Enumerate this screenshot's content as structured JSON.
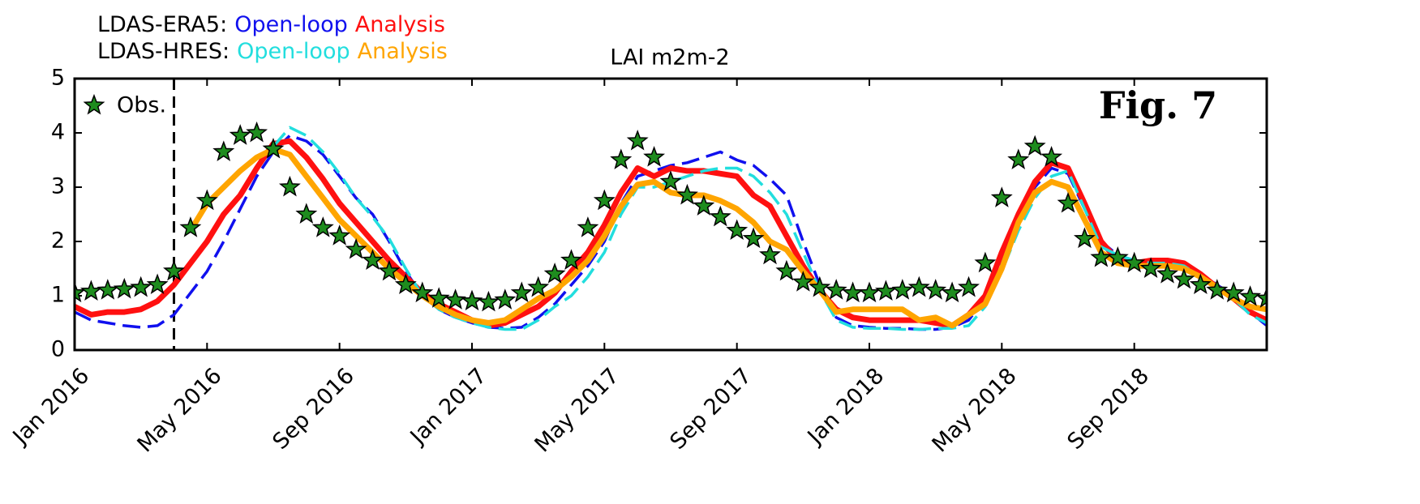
{
  "chart_data": {
    "type": "line",
    "title": "LAI m2m-2",
    "annotation": "Fig. 7",
    "legend_rows": [
      {
        "label": "LDAS-ERA5:"
      },
      {
        "label": "LDAS-HRES:"
      }
    ],
    "legend": "upper left",
    "xlim": [
      2016,
      2019
    ],
    "ylim": [
      0,
      5
    ],
    "yticks": [
      0,
      1,
      2,
      3,
      4,
      5
    ],
    "xticks": [
      {
        "value": 2016,
        "label": "Jan 2016"
      },
      {
        "value": 2016.3333,
        "label": "May 2016"
      },
      {
        "value": 2016.6667,
        "label": "Sep 2016"
      },
      {
        "value": 2017,
        "label": "Jan 2017"
      },
      {
        "value": 2017.3333,
        "label": "May 2017"
      },
      {
        "value": 2017.6667,
        "label": "Sep 2017"
      },
      {
        "value": 2018,
        "label": "Jan 2018"
      },
      {
        "value": 2018.3333,
        "label": "May 2018"
      },
      {
        "value": 2018.6667,
        "label": "Sep 2018"
      }
    ],
    "vline": 2016.25,
    "x": [
      2016,
      2016.0417,
      2016.0833,
      2016.125,
      2016.1667,
      2016.2083,
      2016.25,
      2016.2917,
      2016.3333,
      2016.375,
      2016.4167,
      2016.4583,
      2016.5,
      2016.5417,
      2016.5833,
      2016.625,
      2016.6667,
      2016.7083,
      2016.75,
      2016.7917,
      2016.8333,
      2016.875,
      2016.9167,
      2016.9583,
      2017,
      2017.0417,
      2017.0833,
      2017.125,
      2017.1667,
      2017.2083,
      2017.25,
      2017.2917,
      2017.3333,
      2017.375,
      2017.4167,
      2017.4583,
      2017.5,
      2017.5417,
      2017.5833,
      2017.625,
      2017.6667,
      2017.7083,
      2017.75,
      2017.7917,
      2017.8333,
      2017.875,
      2017.9167,
      2017.9583,
      2018,
      2018.0417,
      2018.0833,
      2018.125,
      2018.1667,
      2018.2083,
      2018.25,
      2018.2917,
      2018.3333,
      2018.375,
      2018.4167,
      2018.4583,
      2018.5,
      2018.5417,
      2018.5833,
      2018.625,
      2018.6667,
      2018.7083,
      2018.75,
      2018.7917,
      2018.8333,
      2018.875,
      2018.9167,
      2018.9583,
      2019
    ],
    "series": [
      {
        "name": "Open-loop",
        "color": "#1010ee",
        "style": "dashed",
        "width": 3.5,
        "values": [
          0.7,
          0.55,
          0.5,
          0.45,
          0.42,
          0.45,
          0.65,
          1.05,
          1.45,
          2.0,
          2.6,
          3.2,
          3.65,
          3.95,
          3.85,
          3.6,
          3.2,
          2.8,
          2.5,
          2.0,
          1.45,
          1.0,
          0.75,
          0.6,
          0.5,
          0.42,
          0.4,
          0.42,
          0.6,
          0.85,
          1.2,
          1.55,
          2.0,
          2.7,
          3.2,
          3.3,
          3.4,
          3.45,
          3.55,
          3.65,
          3.5,
          3.4,
          3.15,
          2.85,
          2.0,
          1.2,
          0.6,
          0.45,
          0.42,
          0.4,
          0.4,
          0.38,
          0.38,
          0.42,
          0.55,
          0.95,
          1.6,
          2.4,
          3.0,
          3.35,
          3.25,
          2.6,
          2.0,
          1.75,
          1.65,
          1.65,
          1.6,
          1.55,
          1.4,
          1.2,
          1.0,
          0.7,
          0.45
        ]
      },
      {
        "name": "Analysis",
        "color": "#ff1010",
        "style": "solid",
        "width": 7,
        "values": [
          0.8,
          0.65,
          0.7,
          0.7,
          0.75,
          0.9,
          1.2,
          1.6,
          2.0,
          2.5,
          2.85,
          3.35,
          3.8,
          3.85,
          3.55,
          3.15,
          2.7,
          2.35,
          2.0,
          1.65,
          1.35,
          1.05,
          0.85,
          0.7,
          0.55,
          0.45,
          0.5,
          0.65,
          0.8,
          1.05,
          1.45,
          1.8,
          2.3,
          2.9,
          3.35,
          3.2,
          3.35,
          3.3,
          3.3,
          3.25,
          3.2,
          2.85,
          2.65,
          2.1,
          1.55,
          1.1,
          0.75,
          0.6,
          0.55,
          0.55,
          0.55,
          0.55,
          0.5,
          0.45,
          0.65,
          1.0,
          1.8,
          2.5,
          3.1,
          3.45,
          3.35,
          2.7,
          2.0,
          1.65,
          1.6,
          1.65,
          1.65,
          1.6,
          1.4,
          1.15,
          0.95,
          0.7,
          0.55
        ]
      },
      {
        "name": "Open-loop",
        "color": "#22dede",
        "style": "dashed",
        "width": 3.5,
        "values": [
          null,
          null,
          null,
          null,
          null,
          null,
          null,
          null,
          null,
          null,
          null,
          null,
          3.75,
          4.1,
          3.95,
          3.65,
          3.25,
          2.8,
          2.45,
          2.05,
          1.5,
          1.0,
          0.75,
          0.6,
          0.5,
          0.42,
          0.38,
          0.38,
          0.55,
          0.8,
          1.0,
          1.35,
          1.8,
          2.5,
          3.0,
          3.0,
          3.1,
          3.2,
          3.3,
          3.35,
          3.35,
          3.2,
          2.9,
          2.5,
          1.8,
          1.1,
          0.55,
          0.42,
          0.4,
          0.4,
          0.38,
          0.38,
          0.4,
          0.4,
          0.45,
          0.8,
          1.45,
          2.2,
          2.8,
          3.2,
          3.3,
          2.6,
          1.9,
          1.75,
          1.65,
          1.6,
          1.6,
          1.55,
          1.35,
          1.15,
          0.95,
          0.65,
          0.5
        ]
      },
      {
        "name": "Analysis",
        "color": "#ffa500",
        "style": "solid",
        "width": 7,
        "values": [
          null,
          null,
          null,
          null,
          null,
          null,
          null,
          2.2,
          2.7,
          3.0,
          3.3,
          3.55,
          3.7,
          3.6,
          3.2,
          2.8,
          2.4,
          2.1,
          1.8,
          1.5,
          1.25,
          1.0,
          0.8,
          0.65,
          0.55,
          0.5,
          0.55,
          0.75,
          0.95,
          1.1,
          1.35,
          1.65,
          2.1,
          2.65,
          3.05,
          3.1,
          2.9,
          2.85,
          2.85,
          2.75,
          2.6,
          2.35,
          2.0,
          1.85,
          1.45,
          1.1,
          0.7,
          0.75,
          0.75,
          0.75,
          0.75,
          0.55,
          0.6,
          0.45,
          0.65,
          0.85,
          1.5,
          2.35,
          2.9,
          3.1,
          3.0,
          2.4,
          1.8,
          1.6,
          1.55,
          1.55,
          1.55,
          1.5,
          1.35,
          1.15,
          0.95,
          0.8,
          0.75
        ]
      },
      {
        "name": "Obs.",
        "color": "#1e8c1e",
        "marker": "star",
        "values": [
          1.05,
          1.08,
          1.1,
          1.12,
          1.15,
          1.2,
          1.45,
          2.25,
          2.75,
          3.65,
          3.95,
          4.0,
          3.7,
          3.0,
          2.5,
          2.25,
          2.1,
          1.85,
          1.65,
          1.45,
          1.2,
          1.05,
          0.95,
          0.92,
          0.9,
          0.88,
          0.92,
          1.05,
          1.15,
          1.4,
          1.65,
          2.25,
          2.75,
          3.5,
          3.85,
          3.55,
          3.1,
          2.85,
          2.65,
          2.45,
          2.2,
          2.05,
          1.75,
          1.45,
          1.25,
          1.15,
          1.1,
          1.05,
          1.05,
          1.08,
          1.1,
          1.15,
          1.1,
          1.05,
          1.15,
          1.6,
          2.8,
          3.5,
          3.75,
          3.55,
          2.7,
          2.05,
          1.7,
          1.7,
          1.6,
          1.5,
          1.4,
          1.3,
          1.2,
          1.1,
          1.05,
          0.98,
          0.95
        ]
      }
    ]
  }
}
